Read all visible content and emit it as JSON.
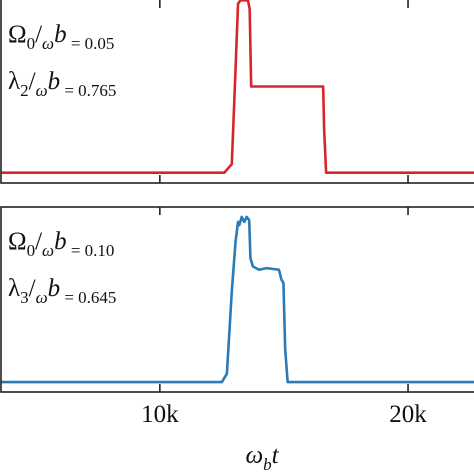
{
  "chart_data": [
    {
      "type": "line",
      "annotations": [
        {
          "parts": [
            "Ω",
            "0",
            "/",
            "ω",
            "b",
            " = 0.05"
          ]
        },
        {
          "parts": [
            "λ",
            "2",
            "/",
            "ω",
            "b",
            " = 0.765"
          ]
        }
      ],
      "series": [
        {
          "color": "#d7262b",
          "x": [
            3600,
            12600,
            12900,
            13050,
            13150,
            13250,
            13550,
            13620,
            13680,
            13750,
            16580,
            16620,
            16700,
            22900
          ],
          "values": [
            0,
            0,
            0.05,
            0.6,
            0.98,
            1,
            1,
            0.95,
            0.5,
            0.5,
            0.5,
            0.25,
            0,
            0
          ]
        }
      ],
      "xlim": [
        3600,
        22900
      ],
      "xticks": [
        {
          "value": 10000,
          "label": "10k"
        },
        {
          "value": 20000,
          "label": "20k"
        }
      ],
      "ylim": [
        -0.06,
        1.06
      ]
    },
    {
      "type": "line",
      "annotations": [
        {
          "parts": [
            "Ω",
            "0",
            "/",
            "ω",
            "b",
            " = 0.10"
          ]
        },
        {
          "parts": [
            "λ",
            "3",
            "/",
            "ω",
            "b",
            " = 0.645"
          ]
        }
      ],
      "xlabel": {
        "parts": [
          "ω",
          "b",
          "t"
        ]
      },
      "series": [
        {
          "color": "#2c7bb6",
          "x": [
            3600,
            12500,
            12700,
            12900,
            13050,
            13150,
            13200,
            13300,
            13400,
            13500,
            13600,
            13650,
            13750,
            14000,
            14300,
            14800,
            14900,
            14980,
            15050,
            15150,
            22900
          ],
          "values": [
            0,
            0,
            0.05,
            0.55,
            0.85,
            0.97,
            0.95,
            1,
            0.97,
            1,
            0.98,
            0.75,
            0.7,
            0.68,
            0.69,
            0.68,
            0.62,
            0.6,
            0.2,
            0,
            0
          ]
        }
      ],
      "xlim": [
        3600,
        22900
      ],
      "xticks": [
        {
          "value": 10000,
          "label": "10k"
        },
        {
          "value": 20000,
          "label": "20k"
        }
      ],
      "ylim": [
        -0.06,
        1.06
      ]
    }
  ]
}
